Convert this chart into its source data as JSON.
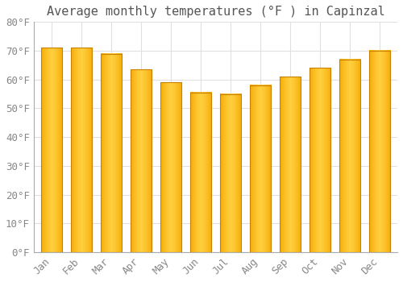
{
  "title": "Average monthly temperatures (°F ) in Capinzal",
  "months": [
    "Jan",
    "Feb",
    "Mar",
    "Apr",
    "May",
    "Jun",
    "Jul",
    "Aug",
    "Sep",
    "Oct",
    "Nov",
    "Dec"
  ],
  "values": [
    71,
    71,
    69,
    63.5,
    59,
    55.5,
    55,
    58,
    61,
    64,
    67,
    70
  ],
  "bar_color_left": "#F5A800",
  "bar_color_center": "#FFD040",
  "bar_color_right": "#F5A800",
  "bar_edge_color": "#C88000",
  "background_color": "#FFFFFF",
  "grid_color": "#E0E0E0",
  "text_color": "#888888",
  "title_color": "#555555",
  "ylim": [
    0,
    80
  ],
  "yticks": [
    0,
    10,
    20,
    30,
    40,
    50,
    60,
    70,
    80
  ],
  "ytick_labels": [
    "0°F",
    "10°F",
    "20°F",
    "30°F",
    "40°F",
    "50°F",
    "60°F",
    "70°F",
    "80°F"
  ],
  "title_fontsize": 11,
  "tick_fontsize": 9
}
